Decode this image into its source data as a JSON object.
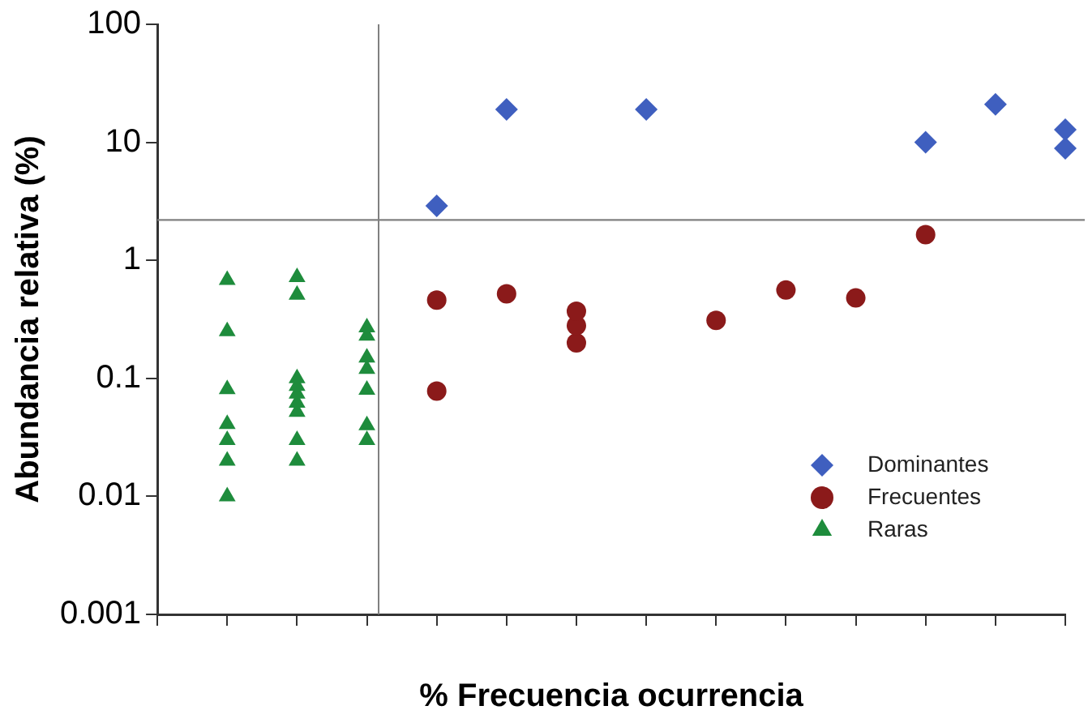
{
  "chart_data": {
    "type": "scatter",
    "xlabel": "% Frecuencia ocurrencia",
    "ylabel": "Abundancia relativa (%)",
    "log": "y",
    "categories": [
      null,
      null,
      null,
      null,
      null,
      null,
      null,
      null,
      null,
      null,
      null,
      null,
      null,
      null
    ],
    "ylim": [
      0.001,
      100
    ],
    "yticks": [
      0.001,
      0.01,
      0.1,
      1,
      10,
      100
    ],
    "grid": false,
    "legend": "bottom right",
    "series": [
      {
        "name": "Dominantes",
        "color": "#3f5fbf",
        "marker": "diamond",
        "values": [
          null,
          null,
          null,
          null,
          2.9,
          19,
          null,
          19,
          null,
          null,
          null,
          10,
          21,
          12.8
        ]
      },
      {
        "color": "#3f5fbf",
        "marker": "diamond",
        "values": [
          null,
          null,
          null,
          null,
          null,
          null,
          null,
          null,
          null,
          null,
          null,
          null,
          null,
          8.9
        ]
      },
      {
        "name": "Frecuentes",
        "color": "#8b1a1a",
        "marker": "circle",
        "values": [
          null,
          null,
          null,
          null,
          0.46,
          0.52,
          0.37,
          null,
          0.31,
          0.56,
          0.48,
          1.65,
          null,
          null
        ]
      },
      {
        "color": "#8b1a1a",
        "marker": "circle",
        "values": [
          null,
          null,
          null,
          null,
          0.078,
          null,
          0.28,
          null,
          null,
          null,
          null,
          null,
          null,
          null
        ]
      },
      {
        "color": "#8b1a1a",
        "marker": "circle",
        "values": [
          null,
          null,
          null,
          null,
          null,
          null,
          0.2,
          null,
          null,
          null,
          null,
          null,
          null,
          null
        ]
      },
      {
        "name": "Raras",
        "color": "#1e8c3c",
        "marker": "triangle",
        "values": [
          null,
          0.68,
          0.72,
          0.27,
          null,
          null,
          null,
          null,
          null,
          null,
          null,
          null,
          null,
          null
        ]
      },
      {
        "color": "#1e8c3c",
        "marker": "triangle",
        "values": [
          null,
          0.25,
          0.51,
          0.23,
          null,
          null,
          null,
          null,
          null,
          null,
          null,
          null,
          null,
          null
        ]
      },
      {
        "color": "#1e8c3c",
        "marker": "triangle",
        "values": [
          null,
          0.081,
          0.1,
          0.15,
          null,
          null,
          null,
          null,
          null,
          null,
          null,
          null,
          null,
          null
        ]
      },
      {
        "color": "#1e8c3c",
        "marker": "triangle",
        "values": [
          null,
          0.041,
          0.086,
          0.12,
          null,
          null,
          null,
          null,
          null,
          null,
          null,
          null,
          null,
          null
        ]
      },
      {
        "color": "#1e8c3c",
        "marker": "triangle",
        "values": [
          null,
          0.03,
          0.074,
          0.08,
          null,
          null,
          null,
          null,
          null,
          null,
          null,
          null,
          null,
          null
        ]
      },
      {
        "color": "#1e8c3c",
        "marker": "triangle",
        "values": [
          null,
          0.02,
          0.062,
          0.04,
          null,
          null,
          null,
          null,
          null,
          null,
          null,
          null,
          null,
          null
        ]
      },
      {
        "color": "#1e8c3c",
        "marker": "triangle",
        "values": [
          null,
          0.01,
          0.052,
          0.03,
          null,
          null,
          null,
          null,
          null,
          null,
          null,
          null,
          null,
          null
        ]
      },
      {
        "color": "#1e8c3c",
        "marker": "triangle",
        "values": [
          null,
          null,
          0.03,
          null,
          null,
          null,
          null,
          null,
          null,
          null,
          null,
          null,
          null,
          null
        ]
      },
      {
        "color": "#1e8c3c",
        "marker": "triangle",
        "values": [
          null,
          null,
          0.02,
          null,
          null,
          null,
          null,
          null,
          null,
          null,
          null,
          null,
          null,
          null
        ]
      }
    ],
    "ref_lines": [
      {
        "axis": "y",
        "value": 2.2,
        "color": "#808080"
      }
    ]
  }
}
